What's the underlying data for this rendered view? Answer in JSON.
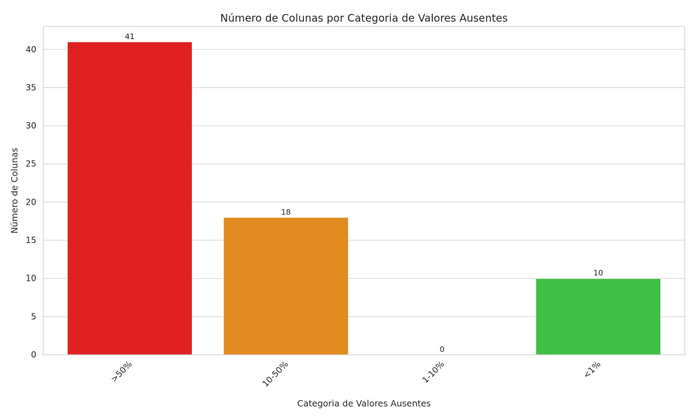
{
  "chart_data": {
    "type": "bar",
    "title": "Número de Colunas por Categoria de Valores Ausentes",
    "xlabel": "Categoria de Valores Ausentes",
    "ylabel": "Número de Colunas",
    "categories": [
      ">50%",
      "10-50%",
      "1-10%",
      "<1%"
    ],
    "values": [
      41,
      18,
      0,
      10
    ],
    "data_labels": [
      "41",
      "18",
      "0",
      "10"
    ],
    "colors": [
      "#e02020",
      "#e08a20",
      "#ffd22e",
      "#40be45"
    ],
    "ylim": [
      0,
      43
    ],
    "yticks": [
      0,
      5,
      10,
      15,
      20,
      25,
      30,
      35,
      40
    ],
    "grid": "horizontal",
    "legend": "none"
  }
}
